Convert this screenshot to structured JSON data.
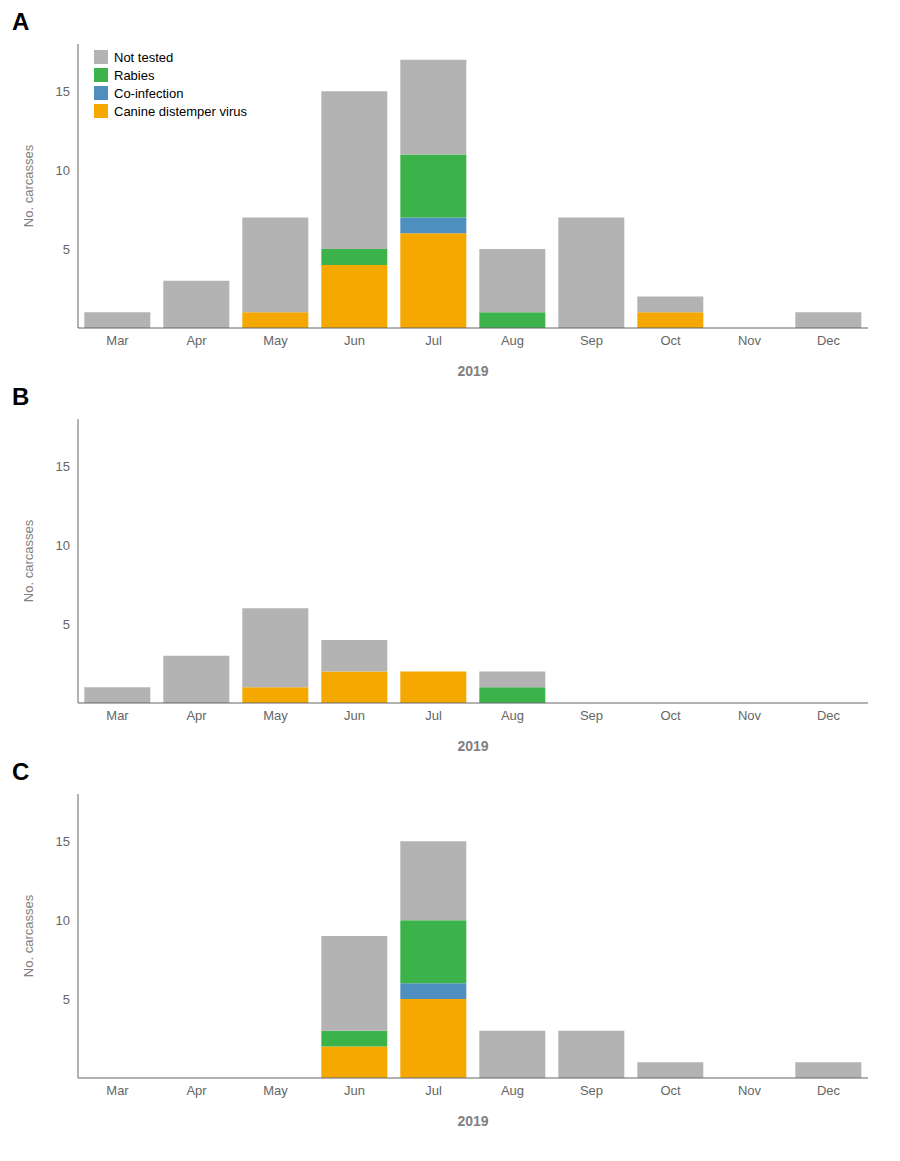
{
  "chart_data": [
    {
      "type": "bar",
      "title": "A",
      "categories": [
        "Mar",
        "Apr",
        "May",
        "Jun",
        "Jul",
        "Aug",
        "Sep",
        "Oct",
        "Nov",
        "Dec"
      ],
      "series": [
        {
          "name": "Not tested",
          "color": "#b3b3b3",
          "values": [
            1,
            3,
            6,
            10,
            6,
            4,
            7,
            1,
            0,
            1
          ]
        },
        {
          "name": "Rabies",
          "color": "#3cb34a",
          "values": [
            0,
            0,
            0,
            1,
            4,
            1,
            0,
            0,
            0,
            0
          ]
        },
        {
          "name": "Co-infection",
          "color": "#4f8fc0",
          "values": [
            0,
            0,
            0,
            0,
            1,
            0,
            0,
            0,
            0,
            0
          ]
        },
        {
          "name": "Canine distemper virus",
          "color": "#f5a800",
          "values": [
            0,
            0,
            1,
            4,
            6,
            0,
            0,
            1,
            0,
            0
          ]
        }
      ],
      "stacked": true,
      "xlabel": "2019",
      "ylabel": "No. carcasses",
      "ylim": [
        0,
        18
      ],
      "yticks": [
        5,
        10,
        15
      ],
      "grid": false,
      "legend": "upper left"
    },
    {
      "type": "bar",
      "title": "B",
      "categories": [
        "Mar",
        "Apr",
        "May",
        "Jun",
        "Jul",
        "Aug",
        "Sep",
        "Oct",
        "Nov",
        "Dec"
      ],
      "series": [
        {
          "name": "Not tested",
          "color": "#b3b3b3",
          "values": [
            1,
            3,
            5,
            2,
            0,
            1,
            0,
            0,
            0,
            0
          ]
        },
        {
          "name": "Rabies",
          "color": "#3cb34a",
          "values": [
            0,
            0,
            0,
            0,
            0,
            1,
            0,
            0,
            0,
            0
          ]
        },
        {
          "name": "Co-infection",
          "color": "#4f8fc0",
          "values": [
            0,
            0,
            0,
            0,
            0,
            0,
            0,
            0,
            0,
            0
          ]
        },
        {
          "name": "Canine distemper virus",
          "color": "#f5a800",
          "values": [
            0,
            0,
            1,
            2,
            2,
            0,
            0,
            0,
            0,
            0
          ]
        }
      ],
      "stacked": true,
      "xlabel": "2019",
      "ylabel": "No. carcasses",
      "ylim": [
        0,
        18
      ],
      "yticks": [
        5,
        10,
        15
      ],
      "grid": false
    },
    {
      "type": "bar",
      "title": "C",
      "categories": [
        "Mar",
        "Apr",
        "May",
        "Jun",
        "Jul",
        "Aug",
        "Sep",
        "Oct",
        "Nov",
        "Dec"
      ],
      "series": [
        {
          "name": "Not tested",
          "color": "#b3b3b3",
          "values": [
            0,
            0,
            0,
            6,
            5,
            3,
            3,
            1,
            0,
            1
          ]
        },
        {
          "name": "Rabies",
          "color": "#3cb34a",
          "values": [
            0,
            0,
            0,
            1,
            4,
            0,
            0,
            0,
            0,
            0
          ]
        },
        {
          "name": "Co-infection",
          "color": "#4f8fc0",
          "values": [
            0,
            0,
            0,
            0,
            1,
            0,
            0,
            0,
            0,
            0
          ]
        },
        {
          "name": "Canine distemper virus",
          "color": "#f5a800",
          "values": [
            0,
            0,
            0,
            2,
            5,
            0,
            0,
            0,
            0,
            0
          ]
        }
      ],
      "stacked": true,
      "xlabel": "2019",
      "ylabel": "No. carcasses",
      "ylim": [
        0,
        18
      ],
      "yticks": [
        5,
        10,
        15
      ],
      "grid": false
    }
  ]
}
